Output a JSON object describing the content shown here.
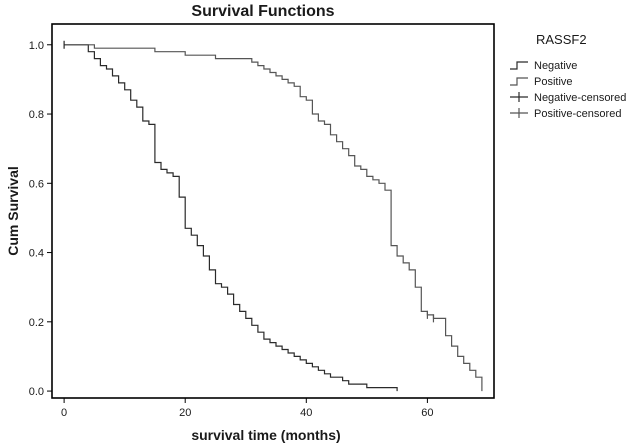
{
  "chart_data": {
    "type": "line",
    "subtype": "kaplan-meier-step",
    "title": "Survival Functions",
    "xlabel": "survival time  (months)",
    "ylabel": "Cum Survival",
    "xlim": [
      -2,
      71
    ],
    "ylim": [
      -0.02,
      1.06
    ],
    "x_ticks": [
      0,
      20,
      40,
      60
    ],
    "y_ticks": [
      0.0,
      0.2,
      0.4,
      0.6,
      0.8,
      1.0
    ],
    "x_tick_labels": [
      "0",
      "20",
      "40",
      "60"
    ],
    "y_tick_labels": [
      "0.0",
      "0.2",
      "0.4",
      "0.6",
      "0.8",
      "1.0"
    ],
    "grid": false,
    "legend": {
      "title": "RASSF2",
      "placement": "right",
      "entries": [
        "Negative",
        "Positive",
        "Negative-censored",
        "Positive-censored"
      ]
    },
    "colors": {
      "negative": "#2a2a2a",
      "positive": "#555555",
      "frame": "#000000"
    },
    "series": [
      {
        "name": "Negative",
        "x": [
          0,
          4,
          5,
          6,
          7,
          8,
          9,
          10,
          11,
          12,
          13,
          14,
          15,
          16,
          17,
          18,
          19,
          20,
          21,
          22,
          23,
          24,
          25,
          26,
          27,
          28,
          29,
          30,
          31,
          32,
          33,
          34,
          35,
          36,
          37,
          38,
          39,
          40,
          41,
          42,
          43,
          44,
          45,
          46,
          47,
          48,
          49,
          50,
          52,
          54,
          55
        ],
        "y": [
          1.0,
          0.98,
          0.96,
          0.94,
          0.93,
          0.91,
          0.89,
          0.87,
          0.84,
          0.82,
          0.78,
          0.77,
          0.66,
          0.64,
          0.63,
          0.62,
          0.56,
          0.47,
          0.45,
          0.42,
          0.39,
          0.35,
          0.31,
          0.3,
          0.28,
          0.25,
          0.23,
          0.21,
          0.19,
          0.17,
          0.15,
          0.14,
          0.13,
          0.12,
          0.11,
          0.1,
          0.09,
          0.08,
          0.07,
          0.06,
          0.05,
          0.04,
          0.04,
          0.03,
          0.02,
          0.02,
          0.02,
          0.01,
          0.01,
          0.01,
          0.0
        ]
      },
      {
        "name": "Positive",
        "x": [
          0,
          5,
          10,
          15,
          18,
          20,
          25,
          28,
          31,
          32,
          33,
          34,
          35,
          36,
          37,
          38,
          39,
          40,
          41,
          42,
          43,
          44,
          45,
          46,
          47,
          48,
          49,
          50,
          51,
          52,
          53,
          54,
          55,
          56,
          57,
          58,
          59,
          60,
          61,
          62,
          63,
          64,
          65,
          66,
          67,
          68,
          69
        ],
        "y": [
          1.0,
          0.99,
          0.99,
          0.98,
          0.98,
          0.97,
          0.96,
          0.96,
          0.95,
          0.94,
          0.93,
          0.92,
          0.91,
          0.9,
          0.89,
          0.88,
          0.85,
          0.84,
          0.8,
          0.78,
          0.77,
          0.74,
          0.72,
          0.7,
          0.68,
          0.65,
          0.64,
          0.62,
          0.61,
          0.6,
          0.58,
          0.42,
          0.39,
          0.37,
          0.35,
          0.3,
          0.23,
          0.22,
          0.21,
          0.21,
          0.16,
          0.13,
          0.1,
          0.08,
          0.06,
          0.04,
          0.0
        ]
      }
    ],
    "censored": [
      {
        "series": "Negative",
        "x": [
          0
        ],
        "y": [
          1.0
        ]
      },
      {
        "series": "Positive",
        "x": [
          60,
          61
        ],
        "y": [
          0.22,
          0.21
        ]
      }
    ]
  }
}
